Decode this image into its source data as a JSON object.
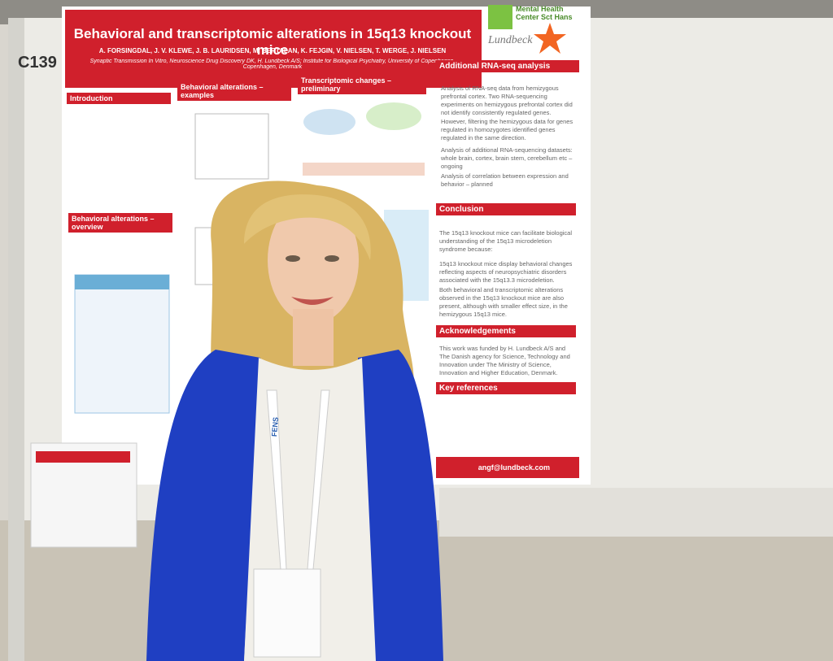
{
  "booth": "C139",
  "poster": {
    "title": "Behavioral and transcriptomic alterations in 15q13 knockout mice",
    "authors": "A. FORSINGDAL, J. V. KLEWE, J. B. LAURIDSEN, M. BERTALAN, K. FEJGIN, V. NIELSEN, T. WERGE, J. NIELSEN",
    "affiliation": "Synaptic Transmission In Vitro, Neuroscience Drug Discovery DK, H. Lundbeck A/S; Institute for Biological Psychiatry, University of Copenhagen, Copenhagen, Denmark",
    "logo_sct_hans": "Mental Health Center Sct Hans",
    "logo_lundbeck": "Lundbeck",
    "introduction": "Introduction",
    "examples": "Behavioral alterations – examples",
    "transcriptomic": "Transcriptomic changes – preliminary",
    "rna_seq_heading": "Additional RNA-seq analysis",
    "rna_seq_text": "Analysis of RNA-seq data from hemizygous prefrontal cortex. Two RNA-sequencing experiments on hemizygous prefrontal cortex did not identify consistently regulated genes. However, filtering the hemizygous data for genes regulated in homozygotes identified genes regulated in the same direction.",
    "rna_seq_bullet2": "Analysis of additional RNA-sequencing datasets: whole brain, cortex, brain stem, cerebellum etc – ongoing",
    "rna_seq_bullet3": "Analysis of correlation between expression and behavior – planned",
    "overview": "Behavioral alterations – overview",
    "conclusion": "Conclusion",
    "conclusion_text": "The 15q13 knockout mice can facilitate biological understanding of the 15q13 microdeletion syndrome because:",
    "conclusion_bullet1": "15q13 knockout mice display behavioral changes reflecting aspects of neuropsychiatric disorders associated with the 15q13.3 microdeletion.",
    "conclusion_bullet2": "Both behavioral and transcriptomic alterations observed in the 15q13 knockout mice are also present, although with smaller effect size, in the hemizygous 15q13 mice.",
    "acknowledgements": "Acknowledgements",
    "acknowledgements_text": "This work was funded by H. Lundbeck A/S and The Danish agency for Science, Technology and Innovation under The Ministry of Science, Innovation and Higher Education, Denmark.",
    "references": "Key references",
    "email": "angf@lundbeck.com"
  },
  "lanyard": "FENS"
}
